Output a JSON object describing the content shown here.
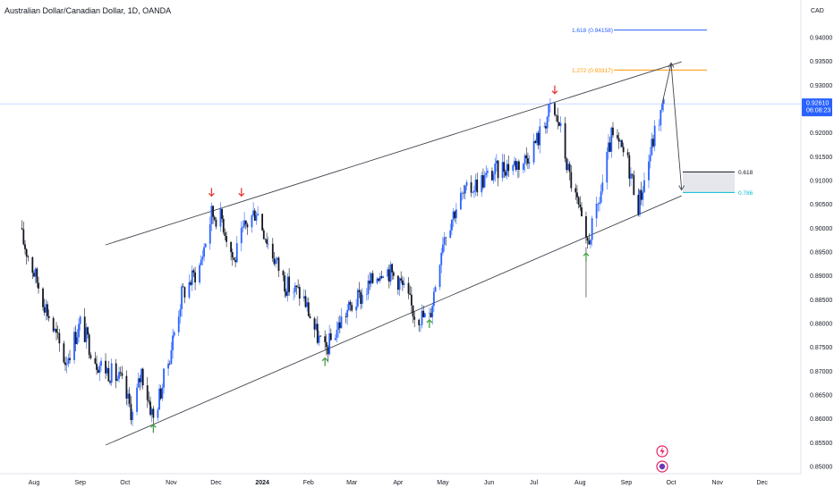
{
  "header": {
    "symbol_title": "Australian Dollar/Canadian Dollar, 1D, OANDA",
    "currency": "CAD"
  },
  "current_price": {
    "value": "0.92610",
    "countdown": "06:08:23",
    "color": "#2962ff"
  },
  "fib_levels": [
    {
      "label": "1.618 (0.94158)",
      "price": 0.94158,
      "color": "#2962ff"
    },
    {
      "label": "1.272 (0.93317)",
      "price": 0.93317,
      "color": "#ff9800"
    }
  ],
  "target_zone": {
    "upper_label": "0.618",
    "lower_label": "0.786",
    "upper_price": 0.9118,
    "lower_price": 0.9075,
    "upper_color": "#131722",
    "lower_color": "#00bcd4"
  },
  "colors": {
    "up_candle": "#2962ff",
    "down_candle": "#131722",
    "channel_line": "#434651",
    "sell_arrow": "#e53935",
    "buy_arrow": "#43a047"
  },
  "chart_data": {
    "type": "candlestick",
    "title": "Australian Dollar/Canadian Dollar, 1D, OANDA",
    "y_axis_unit": "CAD",
    "ylim": [
      0.847,
      0.95
    ],
    "y_ticks": [
      "0.94000",
      "0.93500",
      "0.93000",
      "0.92500",
      "0.92000",
      "0.91500",
      "0.91000",
      "0.90500",
      "0.90000",
      "0.89500",
      "0.89000",
      "0.88500",
      "0.88000",
      "0.87500",
      "0.87000",
      "0.86500",
      "0.86000",
      "0.85500",
      "0.85000"
    ],
    "x_ticks": [
      "Aug",
      "Sep",
      "Oct",
      "Nov",
      "Dec",
      "2024",
      "Feb",
      "Mar",
      "Apr",
      "May",
      "Jun",
      "Jul",
      "Aug",
      "Sep",
      "Oct",
      "Nov",
      "Dec"
    ],
    "grid": false,
    "close_path": [
      {
        "date": "2023-07-24",
        "close": 0.898
      },
      {
        "date": "2023-08-04",
        "close": 0.888
      },
      {
        "date": "2023-08-15",
        "close": 0.878
      },
      {
        "date": "2023-08-22",
        "close": 0.872
      },
      {
        "date": "2023-09-01",
        "close": 0.88
      },
      {
        "date": "2023-09-12",
        "close": 0.872
      },
      {
        "date": "2023-09-28",
        "close": 0.868
      },
      {
        "date": "2023-10-06",
        "close": 0.861
      },
      {
        "date": "2023-10-12",
        "close": 0.87
      },
      {
        "date": "2023-10-20",
        "close": 0.86
      },
      {
        "date": "2023-10-30",
        "close": 0.872
      },
      {
        "date": "2023-11-08",
        "close": 0.886
      },
      {
        "date": "2023-11-20",
        "close": 0.892
      },
      {
        "date": "2023-11-28",
        "close": 0.903
      },
      {
        "date": "2023-12-05",
        "close": 0.902
      },
      {
        "date": "2023-12-13",
        "close": 0.893
      },
      {
        "date": "2023-12-20",
        "close": 0.9
      },
      {
        "date": "2023-12-28",
        "close": 0.904
      },
      {
        "date": "2024-01-06",
        "close": 0.896
      },
      {
        "date": "2024-01-17",
        "close": 0.888
      },
      {
        "date": "2024-01-28",
        "close": 0.886
      },
      {
        "date": "2024-02-06",
        "close": 0.878
      },
      {
        "date": "2024-02-12",
        "close": 0.874
      },
      {
        "date": "2024-02-25",
        "close": 0.882
      },
      {
        "date": "2024-03-08",
        "close": 0.886
      },
      {
        "date": "2024-03-22",
        "close": 0.892
      },
      {
        "date": "2024-04-02",
        "close": 0.889
      },
      {
        "date": "2024-04-12",
        "close": 0.882
      },
      {
        "date": "2024-04-22",
        "close": 0.881
      },
      {
        "date": "2024-05-01",
        "close": 0.898
      },
      {
        "date": "2024-05-12",
        "close": 0.906
      },
      {
        "date": "2024-05-22",
        "close": 0.909
      },
      {
        "date": "2024-06-01",
        "close": 0.911
      },
      {
        "date": "2024-06-11",
        "close": 0.913
      },
      {
        "date": "2024-06-24",
        "close": 0.914
      },
      {
        "date": "2024-07-04",
        "close": 0.919
      },
      {
        "date": "2024-07-12",
        "close": 0.925
      },
      {
        "date": "2024-07-18",
        "close": 0.922
      },
      {
        "date": "2024-07-24",
        "close": 0.912
      },
      {
        "date": "2024-07-31",
        "close": 0.904
      },
      {
        "date": "2024-08-05",
        "close": 0.896
      },
      {
        "date": "2024-08-12",
        "close": 0.903
      },
      {
        "date": "2024-08-22",
        "close": 0.919
      },
      {
        "date": "2024-09-01",
        "close": 0.915
      },
      {
        "date": "2024-09-09",
        "close": 0.905
      },
      {
        "date": "2024-09-13",
        "close": 0.91
      },
      {
        "date": "2024-09-20",
        "close": 0.92
      },
      {
        "date": "2024-09-26",
        "close": 0.926
      }
    ],
    "channel": {
      "upper": [
        {
          "date": "2023-09-18",
          "price": 0.8965
        },
        {
          "date": "2024-10-08",
          "price": 0.9349
        }
      ],
      "lower": [
        {
          "date": "2023-09-18",
          "price": 0.8545
        },
        {
          "date": "2024-10-08",
          "price": 0.9068
        }
      ]
    },
    "projection": [
      {
        "date": "2024-09-25",
        "price": 0.9261
      },
      {
        "date": "2024-10-01",
        "price": 0.9345
      },
      {
        "date": "2024-10-08",
        "price": 0.9082
      }
    ],
    "sell_signals": [
      {
        "date": "2023-11-28",
        "price": 0.9075
      },
      {
        "date": "2023-12-18",
        "price": 0.9075
      },
      {
        "date": "2024-07-15",
        "price": 0.929
      }
    ],
    "buy_signals": [
      {
        "date": "2023-10-20",
        "price": 0.858
      },
      {
        "date": "2024-02-12",
        "price": 0.872
      },
      {
        "date": "2024-04-22",
        "price": 0.88
      },
      {
        "date": "2024-08-05",
        "price": 0.894
      }
    ]
  }
}
